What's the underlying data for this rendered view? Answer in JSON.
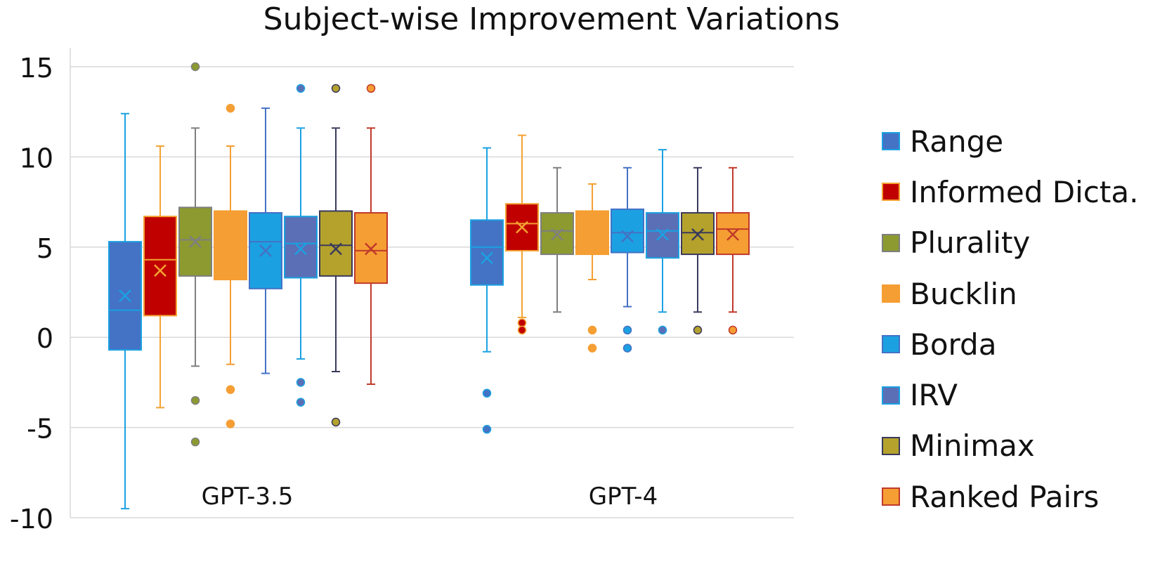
{
  "chart_data": {
    "type": "box",
    "title": "Subject-wise Improvement Variations",
    "xlabel": "",
    "ylabel": "",
    "ylim": [
      -10,
      15
    ],
    "yticks": [
      15,
      10,
      5,
      0,
      -5,
      -10
    ],
    "ytick_labels": [
      "15",
      "10",
      "5",
      "0",
      "-5",
      "-10"
    ],
    "grid": true,
    "legend_position": "right",
    "categories": [
      "GPT-3.5",
      "GPT-4"
    ],
    "series": [
      {
        "name": "Range",
        "fill": "#4472C4",
        "edge": "#1BA1E2",
        "boxes": [
          {
            "min": -9.5,
            "q1": -0.7,
            "median": 1.5,
            "q3": 5.3,
            "max": 12.4,
            "mean": 2.3,
            "outliers": []
          },
          {
            "min": -0.8,
            "q1": 2.9,
            "median": 5.0,
            "q3": 6.5,
            "max": 10.5,
            "mean": 4.4,
            "outliers": [
              -3.1,
              -5.1
            ]
          }
        ]
      },
      {
        "name": "Informed Dicta.",
        "fill": "#C00000",
        "edge": "#F4A233",
        "boxes": [
          {
            "min": -3.9,
            "q1": 1.2,
            "median": 4.3,
            "q3": 6.7,
            "max": 10.6,
            "mean": 3.7,
            "outliers": []
          },
          {
            "min": 1.1,
            "q1": 4.8,
            "median": 6.3,
            "q3": 7.4,
            "max": 11.2,
            "mean": 6.1,
            "outliers": [
              0.8,
              0.4
            ]
          }
        ]
      },
      {
        "name": "Plurality",
        "fill": "#8C9A30",
        "edge": "#7F7F7F",
        "boxes": [
          {
            "min": -1.6,
            "q1": 3.4,
            "median": 5.4,
            "q3": 7.2,
            "max": 11.6,
            "mean": 5.3,
            "outliers": [
              15.0,
              -3.5,
              -5.8
            ]
          },
          {
            "min": 1.4,
            "q1": 4.6,
            "median": 5.9,
            "q3": 6.9,
            "max": 9.4,
            "mean": 5.7,
            "outliers": []
          }
        ]
      },
      {
        "name": "Bucklin",
        "fill": "#F59E33",
        "edge": "#F59E33",
        "boxes": [
          {
            "min": -1.5,
            "q1": 3.2,
            "median": 5.2,
            "q3": 7.0,
            "max": 10.6,
            "mean": 5.1,
            "outliers": [
              12.7,
              -2.9,
              -4.8
            ]
          },
          {
            "min": 3.2,
            "q1": 4.6,
            "median": 5.8,
            "q3": 7.0,
            "max": 8.5,
            "mean": 5.7,
            "outliers": [
              0.4,
              -0.6
            ]
          }
        ]
      },
      {
        "name": "Borda",
        "fill": "#1BA1E2",
        "edge": "#4472C4",
        "boxes": [
          {
            "min": -2.0,
            "q1": 2.7,
            "median": 5.3,
            "q3": 6.9,
            "max": 12.7,
            "mean": 4.8,
            "outliers": []
          },
          {
            "min": 1.7,
            "q1": 4.7,
            "median": 5.8,
            "q3": 7.1,
            "max": 9.4,
            "mean": 5.6,
            "outliers": [
              0.4,
              -0.6
            ]
          }
        ]
      },
      {
        "name": "IRV",
        "fill": "#5B6FB6",
        "edge": "#1BA1E2",
        "boxes": [
          {
            "min": -1.2,
            "q1": 3.3,
            "median": 5.2,
            "q3": 6.7,
            "max": 11.6,
            "mean": 4.9,
            "outliers": [
              13.8,
              -2.5,
              -3.6
            ]
          },
          {
            "min": 1.4,
            "q1": 4.4,
            "median": 5.9,
            "q3": 6.9,
            "max": 10.4,
            "mean": 5.7,
            "outliers": [
              0.4
            ]
          }
        ]
      },
      {
        "name": "Minimax",
        "fill": "#B4A22D",
        "edge": "#3A3A5C",
        "boxes": [
          {
            "min": -1.9,
            "q1": 3.4,
            "median": 5.1,
            "q3": 7.0,
            "max": 11.6,
            "mean": 4.9,
            "outliers": [
              13.8,
              -4.7
            ]
          },
          {
            "min": 1.4,
            "q1": 4.6,
            "median": 5.8,
            "q3": 6.9,
            "max": 9.4,
            "mean": 5.7,
            "outliers": [
              0.4
            ]
          }
        ]
      },
      {
        "name": "Ranked Pairs",
        "fill": "#F59E33",
        "edge": "#C0392B",
        "boxes": [
          {
            "min": -2.6,
            "q1": 3.0,
            "median": 4.8,
            "q3": 6.9,
            "max": 11.6,
            "mean": 4.9,
            "outliers": [
              13.8
            ]
          },
          {
            "min": 1.4,
            "q1": 4.6,
            "median": 6.0,
            "q3": 6.9,
            "max": 9.4,
            "mean": 5.7,
            "outliers": [
              0.4
            ]
          }
        ]
      }
    ]
  }
}
